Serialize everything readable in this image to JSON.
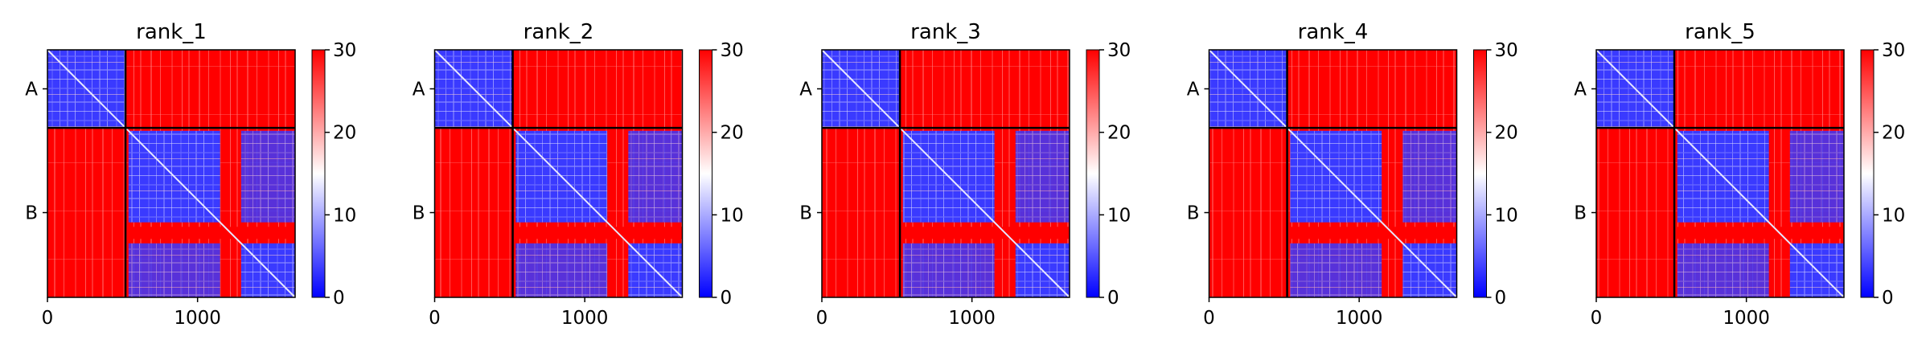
{
  "chart_data": [
    {
      "type": "heatmap",
      "title": "rank_1",
      "xlim": [
        0,
        1650
      ],
      "x_ticks": [
        0,
        1000
      ],
      "y_tick_labels": [
        "A",
        "B"
      ],
      "chain_boundary": 520,
      "chain_lengths": {
        "A": 520,
        "B": 1130
      },
      "colorbar": {
        "min": 0,
        "max": 30,
        "ticks": [
          0,
          10,
          20,
          30
        ],
        "colormap": "bwr"
      },
      "grid": false
    },
    {
      "type": "heatmap",
      "title": "rank_2",
      "xlim": [
        0,
        1650
      ],
      "x_ticks": [
        0,
        1000
      ],
      "y_tick_labels": [
        "A",
        "B"
      ],
      "chain_boundary": 520,
      "chain_lengths": {
        "A": 520,
        "B": 1130
      },
      "colorbar": {
        "min": 0,
        "max": 30,
        "ticks": [
          0,
          10,
          20,
          30
        ],
        "colormap": "bwr"
      },
      "grid": false
    },
    {
      "type": "heatmap",
      "title": "rank_3",
      "xlim": [
        0,
        1650
      ],
      "x_ticks": [
        0,
        1000
      ],
      "y_tick_labels": [
        "A",
        "B"
      ],
      "chain_boundary": 520,
      "chain_lengths": {
        "A": 520,
        "B": 1130
      },
      "colorbar": {
        "min": 0,
        "max": 30,
        "ticks": [
          0,
          10,
          20,
          30
        ],
        "colormap": "bwr"
      },
      "grid": false
    },
    {
      "type": "heatmap",
      "title": "rank_4",
      "xlim": [
        0,
        1650
      ],
      "x_ticks": [
        0,
        1000
      ],
      "y_tick_labels": [
        "A",
        "B"
      ],
      "chain_boundary": 520,
      "chain_lengths": {
        "A": 520,
        "B": 1130
      },
      "colorbar": {
        "min": 0,
        "max": 30,
        "ticks": [
          0,
          10,
          20,
          30
        ],
        "colormap": "bwr"
      },
      "grid": false
    },
    {
      "type": "heatmap",
      "title": "rank_5",
      "xlim": [
        0,
        1650
      ],
      "x_ticks": [
        0,
        1000
      ],
      "y_tick_labels": [
        "A",
        "B"
      ],
      "chain_boundary": 520,
      "chain_lengths": {
        "A": 520,
        "B": 1130
      },
      "colorbar": {
        "min": 0,
        "max": 30,
        "ticks": [
          0,
          10,
          20,
          30
        ],
        "colormap": "bwr"
      },
      "grid": false
    }
  ],
  "colors": {
    "low": "#0000ff",
    "mid": "#ffffff",
    "high": "#ff0000",
    "axis": "#000000"
  }
}
